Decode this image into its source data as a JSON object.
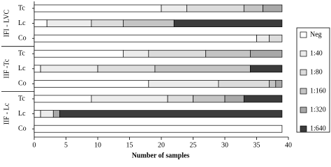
{
  "chart_data": {
    "type": "bar",
    "orientation": "horizontal",
    "stacked": true,
    "groups": [
      "IFI - LVC",
      "IIF -Tc",
      "IIF - Lc"
    ],
    "categories": [
      "Tc",
      "Lc",
      "Co",
      "Tc",
      "Lc",
      "Co",
      "Tc",
      "Lc",
      "Co"
    ],
    "x_label": "Number of samples",
    "xlim": [
      0,
      40
    ],
    "xticks": [
      0,
      5,
      10,
      15,
      20,
      25,
      30,
      35,
      40
    ],
    "legend": "right",
    "series": [
      {
        "name": "Neg",
        "color": "#ffffff",
        "values": [
          20,
          2,
          35,
          14,
          1,
          18,
          9,
          1,
          39
        ]
      },
      {
        "name": "1:40",
        "color": "#ececec",
        "values": [
          4,
          7,
          2,
          4,
          9,
          11,
          12,
          2,
          0
        ]
      },
      {
        "name": "1:80",
        "color": "#dcdcdc",
        "values": [
          9,
          5,
          2,
          9,
          9,
          8,
          4,
          0,
          0
        ]
      },
      {
        "name": "1:160",
        "color": "#c4c4c4",
        "values": [
          3,
          8,
          0,
          7,
          15,
          1,
          5,
          0,
          0
        ]
      },
      {
        "name": "1:320",
        "color": "#a8a8a8",
        "values": [
          3,
          0,
          0,
          5,
          0,
          1,
          3,
          1,
          0
        ]
      },
      {
        "name": "1:640",
        "color": "#3c3c3c",
        "values": [
          0,
          17,
          0,
          0,
          5,
          0,
          6,
          35,
          0
        ]
      }
    ]
  }
}
